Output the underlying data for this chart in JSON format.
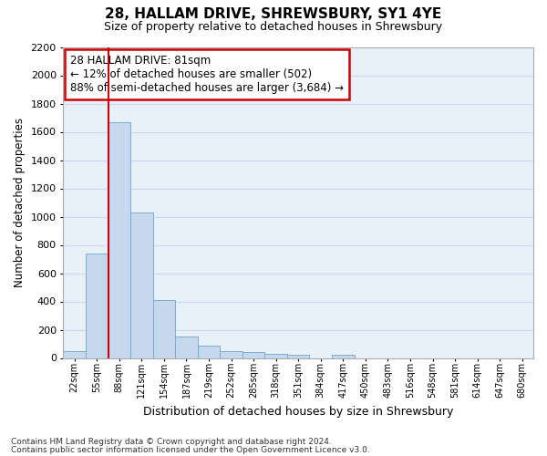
{
  "title": "28, HALLAM DRIVE, SHREWSBURY, SY1 4YE",
  "subtitle": "Size of property relative to detached houses in Shrewsbury",
  "xlabel": "Distribution of detached houses by size in Shrewsbury",
  "ylabel": "Number of detached properties",
  "footer1": "Contains HM Land Registry data © Crown copyright and database right 2024.",
  "footer2": "Contains public sector information licensed under the Open Government Licence v3.0.",
  "bin_labels": [
    "22sqm",
    "55sqm",
    "88sqm",
    "121sqm",
    "154sqm",
    "187sqm",
    "219sqm",
    "252sqm",
    "285sqm",
    "318sqm",
    "351sqm",
    "384sqm",
    "417sqm",
    "450sqm",
    "483sqm",
    "516sqm",
    "548sqm",
    "581sqm",
    "614sqm",
    "647sqm",
    "680sqm"
  ],
  "bar_values": [
    50,
    740,
    1670,
    1030,
    410,
    150,
    85,
    50,
    40,
    28,
    20,
    0,
    20,
    0,
    0,
    0,
    0,
    0,
    0,
    0,
    0
  ],
  "bar_color": "#c5d8ee",
  "bar_edgecolor": "#7aaed6",
  "grid_color": "#c8d8ee",
  "bg_color": "#e8f0f8",
  "annotation_line1": "28 HALLAM DRIVE: 81sqm",
  "annotation_line2": "← 12% of detached houses are smaller (502)",
  "annotation_line3": "88% of semi-detached houses are larger (3,684) →",
  "annotation_box_color": "#cc0000",
  "vline_color": "#cc0000",
  "vline_x_index": 2,
  "ylim": [
    0,
    2200
  ],
  "yticks": [
    0,
    200,
    400,
    600,
    800,
    1000,
    1200,
    1400,
    1600,
    1800,
    2000,
    2200
  ]
}
